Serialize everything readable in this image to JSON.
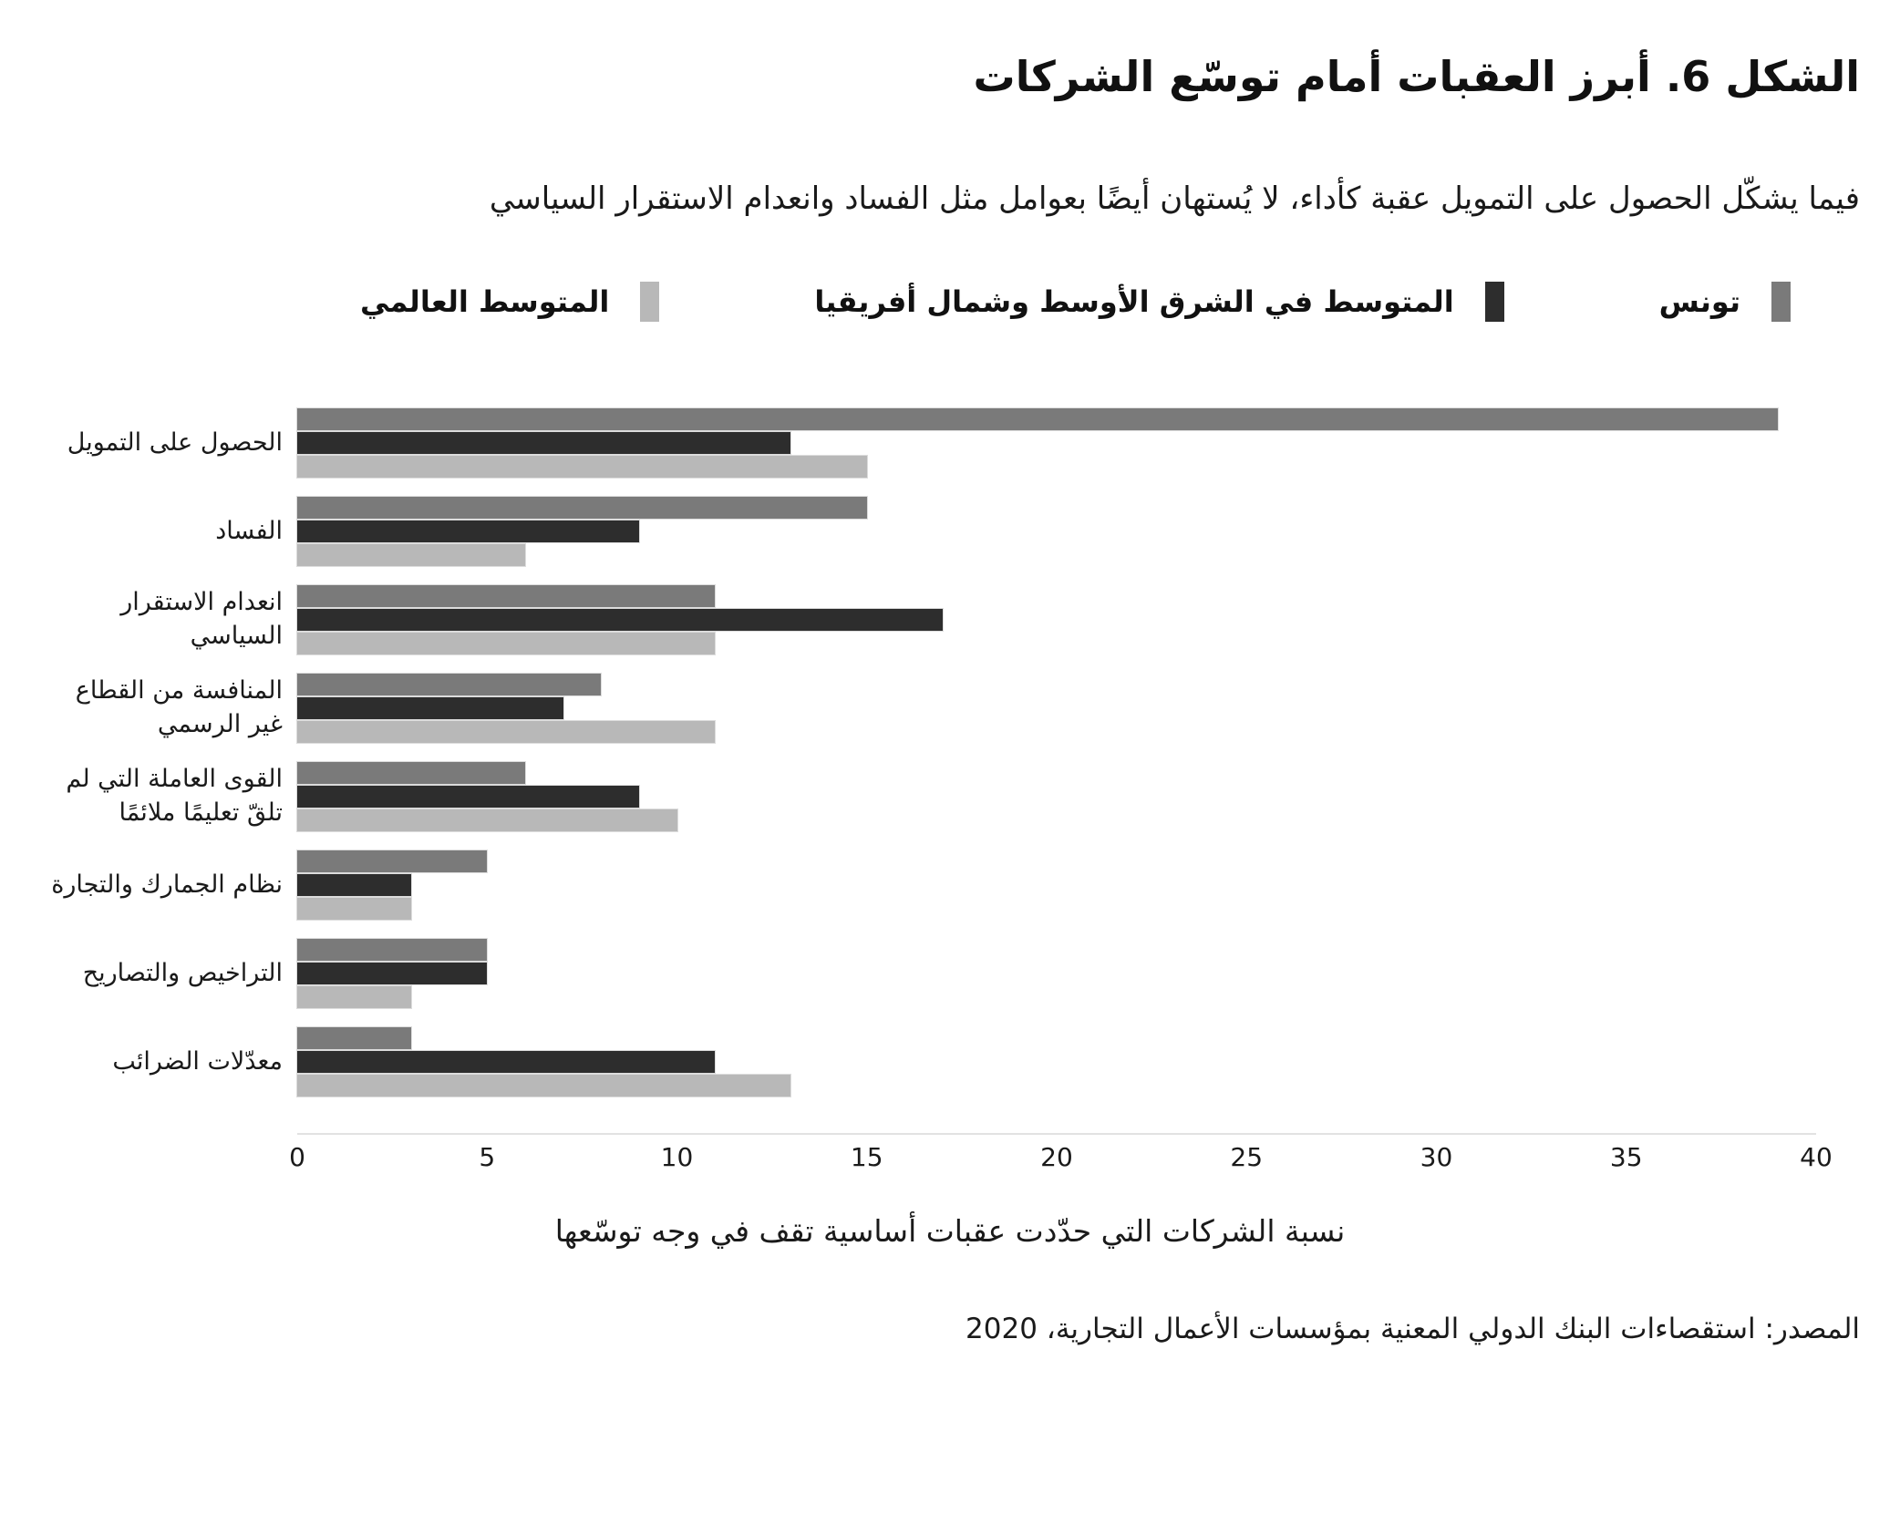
{
  "figure": {
    "title": "الشكل 6. أبرز العقبات أمام توسّع الشركات",
    "subtitle": "فيما يشكّل الحصول على التمويل عقبة كأداء، لا يُستهان أيضًا بعوامل مثل الفساد وانعدام الاستقرار السياسي",
    "source": "المصدر: استقصاءات البنك الدولي المعنية بمؤسسات الأعمال التجارية، 2020"
  },
  "colors": {
    "tunisia": "#7a7a7a",
    "mena": "#2d2d2d",
    "world": "#b8b8b8",
    "axis_line": "#e2e2e2",
    "text": "#1a1a1a"
  },
  "chart_data": {
    "type": "bar",
    "orientation": "horizontal",
    "title": "الشكل 6. أبرز العقبات أمام توسّع الشركات",
    "subtitle": "فيما يشكّل الحصول على التمويل عقبة كأداء، لا يُستهان أيضًا بعوامل مثل الفساد وانعدام الاستقرار السياسي",
    "categories": [
      "الحصول على التمويل",
      "الفساد",
      "انعدام الاستقرار السياسي",
      "المنافسة من القطاع غير الرسمي",
      "القوى العاملة التي لم تلقّ تعليمًا ملائمًا",
      "نظام الجمارك والتجارة",
      "التراخيص والتصاريح",
      "معدّلات الضرائب"
    ],
    "series": [
      {
        "key": "tunisia",
        "name": "تونس",
        "color": "#7a7a7a",
        "values": [
          39,
          15,
          11,
          8,
          6,
          5,
          5,
          3
        ]
      },
      {
        "key": "mena",
        "name": "المتوسط في الشرق الأوسط وشمال أفريقيا",
        "color": "#2d2d2d",
        "values": [
          13,
          9,
          17,
          7,
          9,
          3,
          5,
          11
        ]
      },
      {
        "key": "world",
        "name": "المتوسط العالمي",
        "color": "#b8b8b8",
        "values": [
          15,
          6,
          11,
          11,
          10,
          3,
          3,
          13
        ]
      }
    ],
    "xlabel": "نسبة الشركات التي حدّدت عقبات أساسية تقف في وجه توسّعها",
    "ylabel": "",
    "xlim": [
      0,
      40
    ],
    "xticks": [
      0,
      5,
      10,
      15,
      20,
      25,
      30,
      35,
      40
    ],
    "grid": false,
    "legend_position": "top"
  }
}
